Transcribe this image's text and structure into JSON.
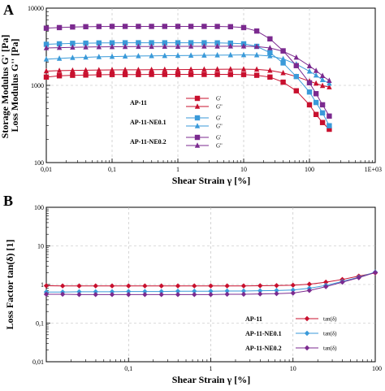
{
  "chart_data": [
    {
      "panel": "A",
      "type": "line",
      "xscale": "log",
      "yscale": "log",
      "xlim": [
        0.01,
        1000
      ],
      "ylim": [
        100,
        10000
      ],
      "xticks": [
        "0,01",
        "0,1",
        "1",
        "10",
        "100",
        "1E+03"
      ],
      "yticks": [
        "100",
        "1000",
        "10000"
      ],
      "xlabel": "Shear Strain γ [%]",
      "ylabel": "Storage Modulus G' [Pa]\nLoss Modulus G'' [Pa]",
      "grid": true,
      "legend_position": "bottom-center",
      "legend_groups": [
        {
          "label": "AP-11",
          "entries": [
            "G'",
            "G''"
          ],
          "color": "#c8102e"
        },
        {
          "label": "AP-11-NE0.1",
          "entries": [
            "G'",
            "G''"
          ],
          "color": "#3a9ad9"
        },
        {
          "label": "AP-11-NE0.2",
          "entries": [
            "G'",
            "G''"
          ],
          "color": "#7b2a8f"
        }
      ],
      "x": [
        0.01,
        0.0158,
        0.0251,
        0.0398,
        0.0631,
        0.1,
        0.158,
        0.251,
        0.398,
        0.631,
        1,
        1.58,
        2.51,
        3.98,
        6.31,
        10,
        15.8,
        25.1,
        39.8,
        63.1,
        100,
        126,
        158,
        200
      ],
      "series": [
        {
          "group": "AP-11",
          "name": "G'",
          "marker": "square",
          "color": "#c8102e",
          "values": [
            1280,
            1330,
            1350,
            1360,
            1370,
            1380,
            1380,
            1380,
            1385,
            1385,
            1385,
            1385,
            1385,
            1385,
            1385,
            1380,
            1350,
            1280,
            1100,
            850,
            560,
            420,
            330,
            270
          ]
        },
        {
          "group": "AP-11",
          "name": "G''",
          "marker": "triangle",
          "color": "#c8102e",
          "values": [
            1530,
            1550,
            1560,
            1570,
            1580,
            1585,
            1590,
            1590,
            1595,
            1600,
            1600,
            1605,
            1610,
            1615,
            1620,
            1620,
            1610,
            1560,
            1450,
            1300,
            1130,
            1060,
            990,
            950
          ]
        },
        {
          "group": "AP-11-NE0.1",
          "name": "G'",
          "marker": "square",
          "color": "#3a9ad9",
          "values": [
            3400,
            3450,
            3500,
            3520,
            3540,
            3550,
            3560,
            3560,
            3560,
            3560,
            3560,
            3560,
            3560,
            3550,
            3520,
            3450,
            3200,
            2650,
            1950,
            1300,
            820,
            600,
            440,
            300
          ]
        },
        {
          "group": "AP-11-NE0.1",
          "name": "G''",
          "marker": "triangle",
          "color": "#3a9ad9",
          "values": [
            2180,
            2230,
            2280,
            2310,
            2340,
            2360,
            2380,
            2400,
            2410,
            2420,
            2430,
            2440,
            2450,
            2460,
            2470,
            2480,
            2470,
            2400,
            2200,
            1880,
            1520,
            1350,
            1180,
            1060
          ]
        },
        {
          "group": "AP-11-NE0.2",
          "name": "G'",
          "marker": "square",
          "color": "#7b2a8f",
          "values": [
            5500,
            5600,
            5700,
            5750,
            5780,
            5800,
            5800,
            5800,
            5800,
            5800,
            5800,
            5800,
            5800,
            5790,
            5750,
            5600,
            5050,
            4000,
            2800,
            1800,
            1080,
            780,
            560,
            400
          ]
        },
        {
          "group": "AP-11-NE0.2",
          "name": "G''",
          "marker": "triangle",
          "color": "#7b2a8f",
          "values": [
            3050,
            3080,
            3110,
            3130,
            3150,
            3160,
            3170,
            3180,
            3180,
            3190,
            3190,
            3200,
            3200,
            3200,
            3210,
            3210,
            3180,
            3050,
            2760,
            2300,
            1780,
            1550,
            1330,
            1150
          ]
        }
      ]
    },
    {
      "panel": "B",
      "type": "line",
      "xscale": "log",
      "yscale": "log",
      "xlim": [
        0.01,
        100
      ],
      "ylim": [
        0.01,
        100
      ],
      "xticks": [
        "0,1",
        "1",
        "10",
        "100"
      ],
      "yticks": [
        "0,01",
        "0,1",
        "1",
        "10",
        "100"
      ],
      "xlabel": "Shear Strain γ [%]",
      "ylabel": "Loss Factor tan(δ) [1]",
      "grid": true,
      "legend_position": "bottom-right",
      "legend_groups": [
        {
          "label": "AP-11",
          "entries": [
            "tan(δ)"
          ],
          "color": "#c8102e"
        },
        {
          "label": "AP-11-NE0.1",
          "entries": [
            "tan(δ)"
          ],
          "color": "#3a9ad9"
        },
        {
          "label": "AP-11-NE0.2",
          "entries": [
            "tan(δ)"
          ],
          "color": "#7b2a8f"
        }
      ],
      "x": [
        0.01,
        0.0158,
        0.0251,
        0.0398,
        0.0631,
        0.1,
        0.158,
        0.251,
        0.398,
        0.631,
        1,
        1.58,
        2.51,
        3.98,
        6.31,
        10,
        15.8,
        25.1,
        39.8,
        63.1,
        100
      ],
      "series": [
        {
          "group": "AP-11",
          "name": "tan(δ)",
          "marker": "diamond",
          "color": "#c8102e",
          "values": [
            0.93,
            0.92,
            0.92,
            0.92,
            0.92,
            0.92,
            0.92,
            0.92,
            0.92,
            0.92,
            0.92,
            0.92,
            0.92,
            0.93,
            0.94,
            0.96,
            1.02,
            1.15,
            1.35,
            1.65,
            2.0
          ]
        },
        {
          "group": "AP-11-NE0.1",
          "name": "tan(δ)",
          "marker": "diamond",
          "color": "#3a9ad9",
          "values": [
            0.64,
            0.64,
            0.65,
            0.65,
            0.65,
            0.66,
            0.66,
            0.66,
            0.67,
            0.67,
            0.67,
            0.68,
            0.68,
            0.69,
            0.7,
            0.72,
            0.8,
            0.95,
            1.2,
            1.55,
            2.1
          ]
        },
        {
          "group": "AP-11-NE0.2",
          "name": "tan(δ)",
          "marker": "diamond",
          "color": "#7b2a8f",
          "values": [
            0.56,
            0.56,
            0.55,
            0.55,
            0.55,
            0.55,
            0.55,
            0.55,
            0.55,
            0.55,
            0.55,
            0.56,
            0.56,
            0.57,
            0.58,
            0.6,
            0.7,
            0.88,
            1.15,
            1.5,
            2.05
          ]
        }
      ]
    }
  ]
}
